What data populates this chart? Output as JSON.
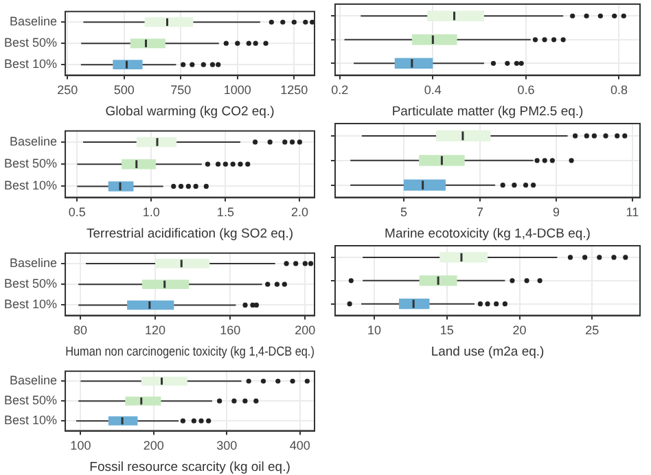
{
  "chart_data": [
    {
      "type": "box",
      "orientation": "horizontal",
      "grid": true,
      "xlabel": "Global warming (kg CO2 eq.)",
      "categories": [
        "Baseline",
        "Best 50%",
        "Best 10%"
      ],
      "colors": [
        "#e5f5e0",
        "#c7e9c0",
        "#6baed6"
      ],
      "xlim": [
        240,
        1340
      ],
      "xticks": [
        250,
        500,
        750,
        1000,
        1250
      ],
      "boxes": [
        {
          "low": 320,
          "q1": 590,
          "median": 690,
          "q3": 805,
          "high": 1100,
          "outliers": [
            1150,
            1200,
            1250,
            1300,
            1330
          ]
        },
        {
          "low": 310,
          "q1": 527,
          "median": 596,
          "q3": 682,
          "high": 918,
          "outliers": [
            950,
            1000,
            1050,
            1080,
            1125
          ]
        },
        {
          "low": 309,
          "q1": 450,
          "median": 511,
          "q3": 581,
          "high": 729,
          "outliers": [
            760,
            800,
            850,
            890,
            915
          ]
        }
      ]
    },
    {
      "type": "box",
      "orientation": "horizontal",
      "grid": true,
      "tick_labels": "x",
      "xlabel": "Particulate matter (kg PM2.5 eq.)",
      "categories": [
        null,
        null,
        null
      ],
      "colors": [
        "#e5f5e0",
        "#c7e9c0",
        "#6baed6"
      ],
      "xlim": [
        0.19,
        0.845
      ],
      "xticks": [
        0.2,
        0.4,
        0.6,
        0.8
      ],
      "boxes": [
        {
          "low": 0.245,
          "q1": 0.388,
          "median": 0.446,
          "q3": 0.51,
          "high": 0.68,
          "outliers": [
            0.7,
            0.73,
            0.76,
            0.79,
            0.81
          ]
        },
        {
          "low": 0.21,
          "q1": 0.355,
          "median": 0.4,
          "q3": 0.452,
          "high": 0.61,
          "outliers": [
            0.62,
            0.64,
            0.66,
            0.68
          ]
        },
        {
          "low": 0.23,
          "q1": 0.318,
          "median": 0.355,
          "q3": 0.4,
          "high": 0.51,
          "outliers": [
            0.53,
            0.56,
            0.58,
            0.59
          ]
        }
      ]
    },
    {
      "type": "box",
      "orientation": "horizontal",
      "grid": true,
      "xlabel": "Terrestrial acidification (kg SO2 eq.)",
      "categories": [
        "Baseline",
        "Best 50%",
        "Best 10%"
      ],
      "colors": [
        "#e5f5e0",
        "#c7e9c0",
        "#6baed6"
      ],
      "xlim": [
        0.42,
        2.1
      ],
      "xticks": [
        {
          "value": 0.5,
          "label": "0.5"
        },
        {
          "value": 1,
          "label": "1.0"
        },
        {
          "value": 1.5,
          "label": "1.5"
        },
        {
          "value": 2,
          "label": "2.0"
        }
      ],
      "boxes": [
        {
          "low": 0.54,
          "q1": 0.9,
          "median": 1.04,
          "q3": 1.17,
          "high": 1.6,
          "outliers": [
            1.7,
            1.8,
            1.9,
            1.95,
            2.0
          ]
        },
        {
          "low": 0.5,
          "q1": 0.8,
          "median": 0.9,
          "q3": 1.03,
          "high": 1.34,
          "outliers": [
            1.38,
            1.45,
            1.5,
            1.55,
            1.6,
            1.65
          ]
        },
        {
          "low": 0.5,
          "q1": 0.71,
          "median": 0.79,
          "q3": 0.88,
          "high": 1.08,
          "outliers": [
            1.15,
            1.2,
            1.25,
            1.3,
            1.37
          ]
        }
      ]
    },
    {
      "type": "box",
      "orientation": "horizontal",
      "grid": true,
      "tick_labels": "x",
      "xlabel": "Marine ecotoxicity (kg 1,4-DCB eq.)",
      "categories": [
        null,
        null,
        null
      ],
      "colors": [
        "#e5f5e0",
        "#c7e9c0",
        "#6baed6"
      ],
      "xlim": [
        3.2,
        11.2
      ],
      "xticks": [
        5,
        7,
        9,
        11
      ],
      "boxes": [
        {
          "low": 3.9,
          "q1": 5.85,
          "median": 6.55,
          "q3": 7.28,
          "high": 9.3,
          "outliers": [
            9.5,
            9.8,
            10.0,
            10.3,
            10.6,
            10.8
          ]
        },
        {
          "low": 3.6,
          "q1": 5.4,
          "median": 6.0,
          "q3": 6.6,
          "high": 8.4,
          "outliers": [
            8.5,
            8.7,
            8.9,
            9.4
          ]
        },
        {
          "low": 3.6,
          "q1": 5.0,
          "median": 5.5,
          "q3": 6.1,
          "high": 7.4,
          "outliers": [
            7.6,
            7.9,
            8.2,
            8.4
          ]
        }
      ]
    },
    {
      "type": "box",
      "orientation": "horizontal",
      "grid": true,
      "xlabel": "Human non carcinogenic toxicity (kg 1,4-DCB eq.)",
      "categories": [
        "Baseline",
        "Best 50%",
        "Best 10%"
      ],
      "colors": [
        "#e5f5e0",
        "#c7e9c0",
        "#6baed6"
      ],
      "xlim": [
        72,
        205
      ],
      "xticks": [
        80,
        120,
        160,
        200
      ],
      "boxes": [
        {
          "low": 83,
          "q1": 120,
          "median": 134,
          "q3": 149,
          "high": 184,
          "outliers": [
            190,
            195,
            200,
            203
          ]
        },
        {
          "low": 79,
          "q1": 113,
          "median": 125,
          "q3": 138,
          "high": 177,
          "outliers": [
            180,
            185,
            189
          ]
        },
        {
          "low": 79,
          "q1": 105,
          "median": 117,
          "q3": 130,
          "high": 163,
          "outliers": [
            168,
            172,
            174
          ]
        }
      ]
    },
    {
      "type": "box",
      "orientation": "horizontal",
      "grid": true,
      "tick_labels": "x",
      "xlabel": "Land use (m2a eq.)",
      "categories": [
        null,
        null,
        null
      ],
      "colors": [
        "#e5f5e0",
        "#c7e9c0",
        "#6baed6"
      ],
      "xlim": [
        7.3,
        28.3
      ],
      "xticks": [
        10,
        15,
        20,
        25
      ],
      "boxes": [
        {
          "low": 9.2,
          "q1": 14.5,
          "median": 16,
          "q3": 17.8,
          "high": 22.6,
          "outliers": [
            23.5,
            24.5,
            25.5,
            26.5,
            27.3
          ]
        },
        {
          "low": 9.2,
          "q1": 13.1,
          "median": 14.4,
          "q3": 15.7,
          "high": 19,
          "outliers": [
            8.4,
            19.5,
            20.5,
            21.4
          ]
        },
        {
          "low": 9.1,
          "q1": 11.7,
          "median": 12.7,
          "q3": 13.8,
          "high": 16.9,
          "outliers": [
            8.3,
            17.3,
            17.8,
            18.4,
            19
          ]
        }
      ]
    },
    {
      "type": "box",
      "orientation": "horizontal",
      "grid": true,
      "xlabel": "Fossil resource scarcity (kg oil eq.)",
      "categories": [
        "Baseline",
        "Best 50%",
        "Best 10%"
      ],
      "colors": [
        "#e5f5e0",
        "#c7e9c0",
        "#6baed6"
      ],
      "xlim": [
        79,
        420
      ],
      "xticks": [
        100,
        200,
        300,
        400
      ],
      "boxes": [
        {
          "low": 100,
          "q1": 183,
          "median": 211,
          "q3": 246,
          "high": 320,
          "outliers": [
            330,
            350,
            370,
            390,
            410
          ]
        },
        {
          "low": 97,
          "q1": 161,
          "median": 183,
          "q3": 210,
          "high": 280,
          "outliers": [
            290,
            310,
            325,
            340
          ]
        },
        {
          "low": 94,
          "q1": 138,
          "median": 157,
          "q3": 178,
          "high": 234,
          "outliers": [
            240,
            255,
            265,
            275
          ]
        }
      ]
    }
  ]
}
